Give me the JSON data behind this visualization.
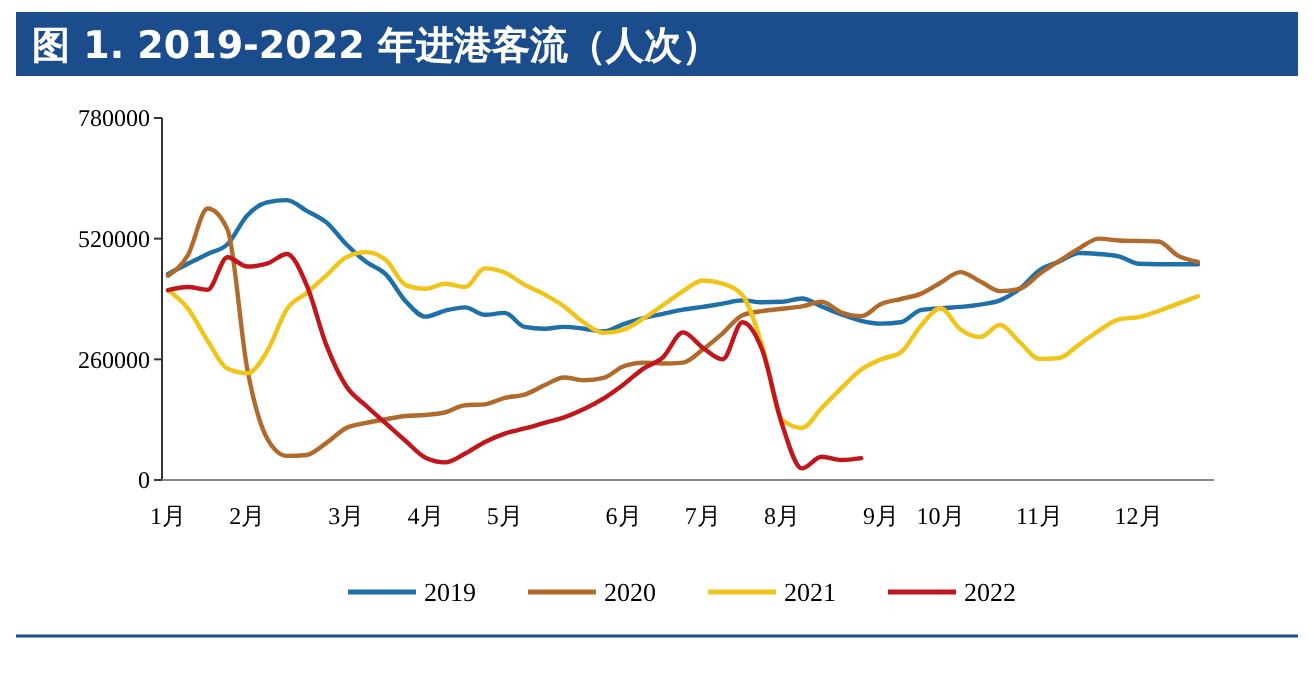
{
  "chart_data": {
    "type": "line",
    "title": "图 1. 2019-2022 年进港客流（人次）",
    "categories": [
      "1月",
      null,
      null,
      null,
      "2月",
      null,
      null,
      null,
      null,
      "3月",
      null,
      null,
      null,
      "4月",
      null,
      null,
      null,
      "5月",
      null,
      null,
      null,
      null,
      null,
      "6月",
      null,
      null,
      null,
      "7月",
      null,
      null,
      null,
      "8月",
      null,
      null,
      null,
      null,
      "9月",
      null,
      null,
      "10月",
      null,
      null,
      null,
      null,
      "11月",
      null,
      null,
      null,
      null,
      "12月",
      null,
      null,
      null
    ],
    "ylim": [
      0,
      780000
    ],
    "yticks": [
      0,
      260000,
      520000,
      780000
    ],
    "grid": false,
    "legend": "bottom",
    "line_style": "solid",
    "series": [
      {
        "name": "2019",
        "color": "#1f6fa8",
        "values": [
          444000,
          466000,
          487000,
          508000,
          570000,
          598000,
          603000,
          580000,
          555000,
          508000,
          470000,
          443000,
          385000,
          352000,
          365000,
          372000,
          356000,
          360000,
          330000,
          326000,
          330000,
          326000,
          320000,
          336000,
          349000,
          358000,
          367000,
          373000,
          380000,
          387000,
          383000,
          384000,
          391000,
          374000,
          357000,
          343000,
          337000,
          340000,
          366000,
          370000,
          373000,
          378000,
          387000,
          412000,
          452000,
          471000,
          489000,
          487000,
          482000,
          466000,
          465000,
          465000,
          465000
        ]
      },
      {
        "name": "2020",
        "color": "#b06a2c",
        "values": [
          440000,
          484000,
          585000,
          540000,
          240000,
          90000,
          52000,
          54000,
          80000,
          112000,
          123000,
          131000,
          138000,
          140000,
          146000,
          161000,
          163000,
          177000,
          184000,
          204000,
          221000,
          215000,
          220000,
          245000,
          253000,
          251000,
          253000,
          281000,
          316000,
          355000,
          364000,
          369000,
          374000,
          384000,
          361000,
          353000,
          379000,
          390000,
          401000,
          425000,
          448000,
          428000,
          407000,
          412000,
          444000,
          472000,
          499000,
          520000,
          516000,
          515000,
          514000,
          483000,
          470000
        ]
      },
      {
        "name": "2021",
        "color": "#f0c419",
        "values": [
          409000,
          370000,
          300000,
          240000,
          230000,
          277000,
          368000,
          403000,
          441000,
          480000,
          491000,
          474000,
          420000,
          412000,
          423000,
          416000,
          456000,
          447000,
          421000,
          400000,
          374000,
          339000,
          317000,
          324000,
          348000,
          377000,
          407000,
          430000,
          423000,
          398000,
          290000,
          130000,
          112000,
          155000,
          198000,
          238000,
          260000,
          275000,
          332000,
          370000,
          325000,
          308000,
          334000,
          297000,
          261000,
          263000,
          292000,
          322000,
          346000,
          351000,
          364000,
          380000,
          396000
        ]
      },
      {
        "name": "2022",
        "color": "#c0161c",
        "values": [
          409000,
          416000,
          410000,
          480000,
          460000,
          466000,
          487000,
          420000,
          290000,
          202000,
          160000,
          122000,
          84000,
          48000,
          38000,
          57000,
          82000,
          100000,
          111000,
          123000,
          135000,
          153000,
          176000,
          206000,
          240000,
          265000,
          318000,
          285000,
          260000,
          340000,
          280000,
          120000,
          25000,
          50000,
          43000,
          47000,
          null,
          null,
          null,
          null,
          null,
          null,
          null,
          null,
          null,
          null,
          null,
          null,
          null,
          null,
          null,
          null,
          null
        ]
      }
    ]
  }
}
